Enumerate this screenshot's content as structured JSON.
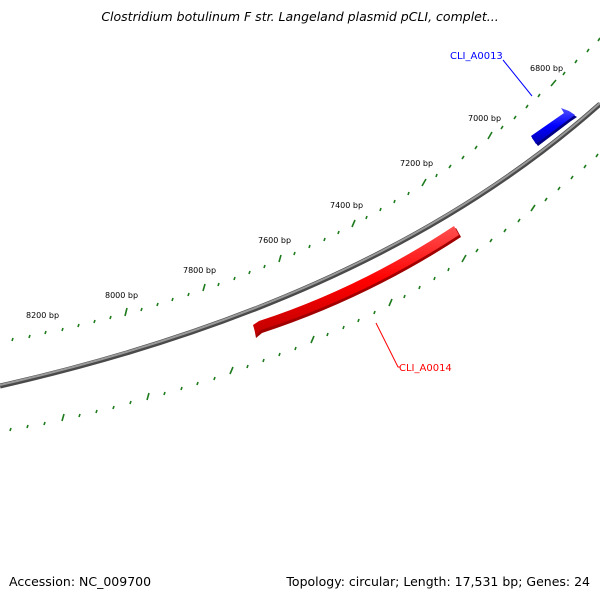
{
  "title": "Clostridium botulinum F str. Langeland plasmid pCLI, complet...",
  "footer": {
    "accession": "Accession: NC_009700",
    "meta": "Topology: circular; Length: 17,531 bp; Genes: 24"
  },
  "backbone_color": "#808080",
  "tick_color": "#1e7b1e",
  "tick_labels": [
    "6800 bp",
    "7000 bp",
    "7200 bp",
    "7400 bp",
    "7600 bp",
    "7800 bp",
    "8000 bp",
    "8200 bp"
  ],
  "genes": [
    {
      "name": "CLI_A0013",
      "color": "#0000ff",
      "strand": "forward"
    },
    {
      "name": "CLI_A0014",
      "color": "#ff0000",
      "strand": "reverse"
    }
  ]
}
